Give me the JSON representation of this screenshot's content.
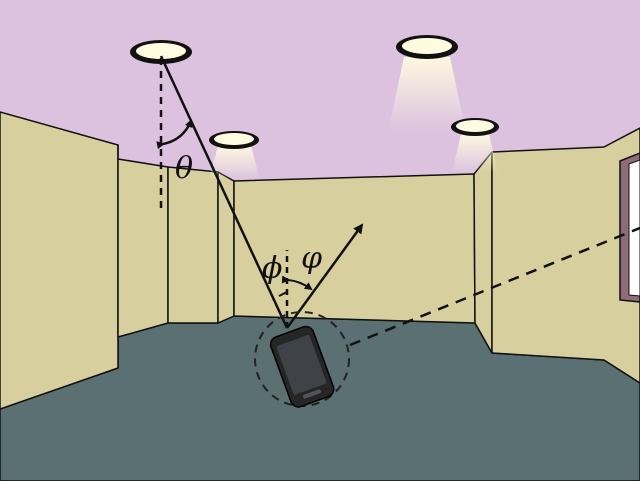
{
  "labels": {
    "theta": "θ",
    "phi": "ϕ",
    "varphi": "φ"
  },
  "colors": {
    "ceiling": "#dcc2df",
    "wall": "#d8cf9f",
    "floor": "#5b7073",
    "window_frame": "#8e6b78",
    "phone_body": "#262626",
    "phone_screen": "#3f4246",
    "line": "#111111",
    "lamp_glow": "#fffbe0"
  },
  "icons": {
    "lamps": "ceiling-light-icon",
    "device": "smartphone-icon"
  }
}
